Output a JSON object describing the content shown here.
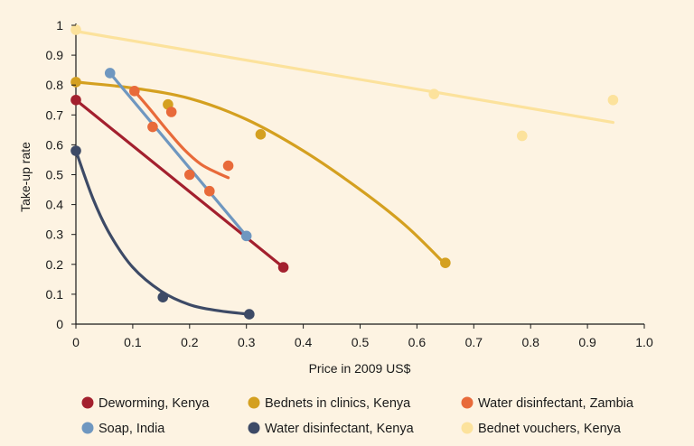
{
  "chart_data": {
    "type": "scatter",
    "title": "",
    "xlabel": "Price in 2009 US$",
    "ylabel": "Take-up rate",
    "xlim": [
      0,
      1.0
    ],
    "ylim": [
      0,
      1.0
    ],
    "x_ticks": [
      "0",
      "0.1",
      "0.2",
      "0.3",
      "0.4",
      "0.5",
      "0.6",
      "0.7",
      "0.8",
      "0.9",
      "1.0"
    ],
    "y_ticks": [
      "0",
      "0.1",
      "0.2",
      "0.3",
      "0.4",
      "0.5",
      "0.6",
      "0.7",
      "0.8",
      "0.9",
      "1"
    ],
    "grid": false,
    "legend_position": "bottom",
    "series": [
      {
        "name": "Deworming, Kenya",
        "color": "#a3202e",
        "points": [
          [
            0,
            0.75
          ],
          [
            0.365,
            0.19
          ]
        ],
        "trend": [
          [
            0,
            0.75
          ],
          [
            0.365,
            0.19
          ]
        ]
      },
      {
        "name": "Bednets in clinics, Kenya",
        "color": "#d4a020",
        "points": [
          [
            0,
            0.81
          ],
          [
            0.162,
            0.735
          ],
          [
            0.325,
            0.635
          ],
          [
            0.65,
            0.205
          ]
        ],
        "trend": [
          [
            0,
            0.81
          ],
          [
            0.1,
            0.79
          ],
          [
            0.2,
            0.755
          ],
          [
            0.3,
            0.685
          ],
          [
            0.4,
            0.58
          ],
          [
            0.5,
            0.45
          ],
          [
            0.58,
            0.33
          ],
          [
            0.65,
            0.2
          ]
        ]
      },
      {
        "name": "Water disinfectant, Zambia",
        "color": "#e86a3a",
        "points": [
          [
            0.103,
            0.78
          ],
          [
            0.135,
            0.66
          ],
          [
            0.168,
            0.71
          ],
          [
            0.2,
            0.5
          ],
          [
            0.235,
            0.445
          ],
          [
            0.268,
            0.53
          ]
        ],
        "trend": [
          [
            0.103,
            0.78
          ],
          [
            0.13,
            0.72
          ],
          [
            0.16,
            0.65
          ],
          [
            0.19,
            0.585
          ],
          [
            0.22,
            0.535
          ],
          [
            0.25,
            0.505
          ],
          [
            0.268,
            0.49
          ]
        ]
      },
      {
        "name": "Soap, India",
        "color": "#6f97c0",
        "points": [
          [
            0.06,
            0.84
          ],
          [
            0.3,
            0.295
          ]
        ],
        "trend": [
          [
            0.06,
            0.84
          ],
          [
            0.3,
            0.295
          ]
        ]
      },
      {
        "name": "Water disinfectant, Kenya",
        "color": "#3d4a66",
        "points": [
          [
            0,
            0.58
          ],
          [
            0.153,
            0.09
          ],
          [
            0.305,
            0.033
          ]
        ],
        "trend": [
          [
            0,
            0.58
          ],
          [
            0.03,
            0.42
          ],
          [
            0.06,
            0.3
          ],
          [
            0.1,
            0.19
          ],
          [
            0.15,
            0.11
          ],
          [
            0.2,
            0.065
          ],
          [
            0.25,
            0.045
          ],
          [
            0.305,
            0.033
          ]
        ]
      },
      {
        "name": "Bednet vouchers, Kenya",
        "color": "#fce29c",
        "points": [
          [
            0,
            0.985
          ],
          [
            0.63,
            0.77
          ],
          [
            0.785,
            0.63
          ],
          [
            0.945,
            0.75
          ]
        ],
        "trend": [
          [
            0,
            0.98
          ],
          [
            0.945,
            0.675
          ]
        ]
      }
    ]
  }
}
